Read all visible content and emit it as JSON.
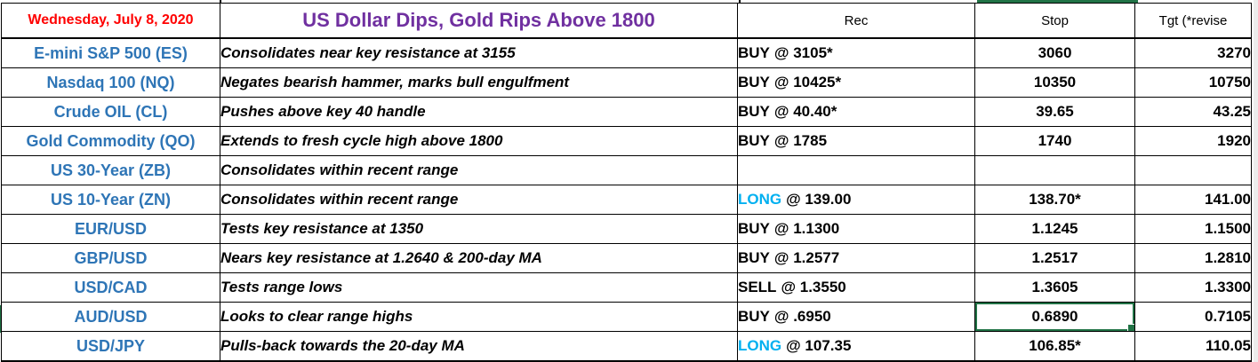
{
  "header": {
    "date": "Wednesday, July 8, 2020",
    "title": "US Dollar Dips, Gold Rips Above 1800",
    "rec": "Rec",
    "stop": "Stop",
    "tgt": "Tgt  (*revise"
  },
  "colors": {
    "date_text": "#FF0000",
    "title_text": "#7030A0",
    "instrument_text": "#2E75B6",
    "long_text": "#00B0F0",
    "selection_green": "#217346",
    "stop_header_bg": "#F2F2F2"
  },
  "rows": [
    {
      "instrument": "E-mini S&P 500 (ES)",
      "note": "Consolidates near key resistance at 3155",
      "rec_action": "BUY",
      "rec_detail": "@ 3105*",
      "rec_action_color": "#000000",
      "stop": "3060",
      "tgt": "3270",
      "selected": false
    },
    {
      "instrument": "Nasdaq 100 (NQ)",
      "note": "Negates bearish hammer, marks bull engulfment",
      "rec_action": "BUY",
      "rec_detail": "@ 10425*",
      "rec_action_color": "#000000",
      "stop": "10350",
      "tgt": "10750",
      "selected": false
    },
    {
      "instrument": "Crude OIL (CL)",
      "note": "Pushes above key 40 handle",
      "rec_action": "BUY",
      "rec_detail": "@ 40.40*",
      "rec_action_color": "#000000",
      "stop": "39.65",
      "tgt": "43.25",
      "selected": false
    },
    {
      "instrument": "Gold Commodity (QO)",
      "note": "Extends to fresh cycle high above 1800",
      "rec_action": "BUY",
      "rec_detail": "@ 1785",
      "rec_action_color": "#000000",
      "stop": "1740",
      "tgt": "1920",
      "selected": false
    },
    {
      "instrument": "US 30-Year (ZB)",
      "note": "Consolidates within recent range",
      "rec_action": "",
      "rec_detail": "",
      "rec_action_color": "#000000",
      "stop": "",
      "tgt": "",
      "selected": false
    },
    {
      "instrument": "US 10-Year (ZN)",
      "note": "Consolidates within recent range",
      "rec_action": "LONG",
      "rec_detail": "@ 139.00",
      "rec_action_color": "#00B0F0",
      "stop": "138.70*",
      "tgt": "141.00",
      "selected": false
    },
    {
      "instrument": "EUR/USD",
      "note": "Tests key resistance at 1350",
      "rec_action": "BUY",
      "rec_detail": "@ 1.1300",
      "rec_action_color": "#000000",
      "stop": "1.1245",
      "tgt": "1.1500",
      "selected": false
    },
    {
      "instrument": "GBP/USD",
      "note": "Nears key resistance at 1.2640 & 200-day MA",
      "rec_action": "BUY",
      "rec_detail": "@ 1.2577",
      "rec_action_color": "#000000",
      "stop": "1.2517",
      "tgt": "1.2810",
      "selected": false
    },
    {
      "instrument": "USD/CAD",
      "note": "Tests range lows",
      "rec_action": "SELL",
      "rec_detail": "@ 1.3550",
      "rec_action_color": "#000000",
      "stop": "1.3605",
      "tgt": "1.3300",
      "selected": false
    },
    {
      "instrument": "AUD/USD",
      "note": "Looks to clear range highs",
      "rec_action": "BUY",
      "rec_detail": "@ .6950",
      "rec_action_color": "#000000",
      "stop": "0.6890",
      "tgt": "0.7105",
      "selected": true
    },
    {
      "instrument": "USD/JPY",
      "note": "Pulls-back towards the 20-day MA",
      "rec_action": "LONG",
      "rec_detail": "@ 107.35",
      "rec_action_color": "#00B0F0",
      "stop": "106.85*",
      "tgt": "110.05",
      "selected": false
    }
  ]
}
